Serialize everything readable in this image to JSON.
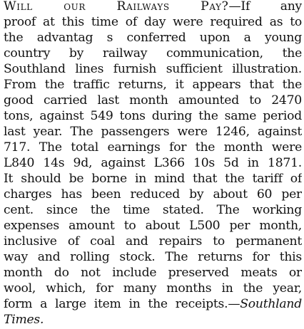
{
  "article": {
    "headline": "Will our Railways Pay?",
    "source": "Southland Times.",
    "lines": [
      "proof at this time of day were required as to",
      "the advantag s conferred upon a young",
      "country by railway communication, the",
      "Southland lines furnish sufficient illustration.",
      "From the traffic returns, it appears that the",
      "good carried last month amounted to 2470",
      "tons, against 549 tons during the same period",
      "last year. The passengers were 1246, against",
      "717. The total earnings for the month were",
      "L840 14s 9d, against L366 10s 5d in 1871.",
      "It should be borne in mind that the tariff of",
      "charges has been reduced by about 60 per",
      "cent. since the time stated. The working",
      "expenses amount to about L500 per month,",
      "inclusive of coal and repairs to permanent",
      "way and rolling stock. The returns for this",
      "month do not include preserved meats or",
      "wool, which, for many months in the year,"
    ],
    "first_line_tail": "—If any",
    "closing_text": "form a large item in the receipts.—"
  }
}
